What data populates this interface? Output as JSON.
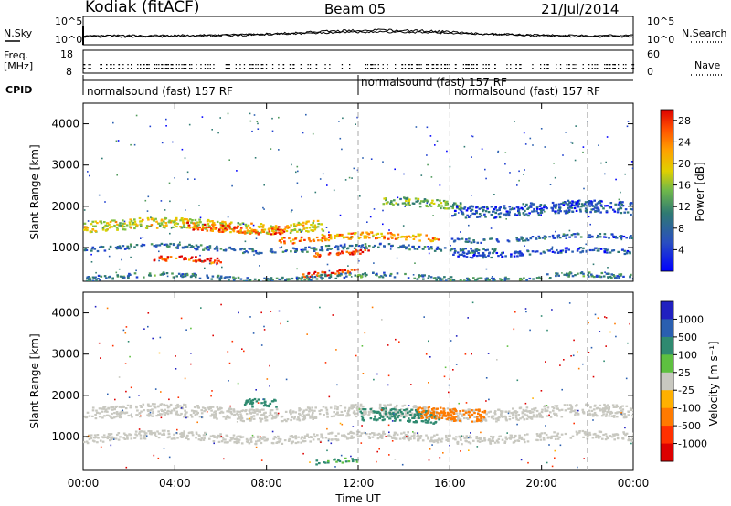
{
  "header": {
    "station": "Kodiak (fitACF)",
    "beam": "Beam 05",
    "date": "21/Jul/2014"
  },
  "top_panels": {
    "nsky_label": "N.Sky",
    "nsky_ticks": [
      "10^5",
      "10^0"
    ],
    "nsearch_label": "N.Search",
    "nsearch_ticks": [
      "10^5",
      "10^0"
    ],
    "freq_label": "Freq.",
    "freq_unit": "[MHz]",
    "freq_ticks": [
      "18",
      "8"
    ],
    "nave_label": "Nave",
    "nave_ticks": [
      "60",
      "0"
    ],
    "cpid_label": "CPID",
    "cpid_entries": [
      {
        "start_hour": 0,
        "text": "normalsound (fast) 157 RF"
      },
      {
        "start_hour": 12,
        "text": "normalsound (fast) 157 RF"
      },
      {
        "start_hour": 16,
        "text": "normalsound (fast) 157 RF"
      }
    ],
    "cpid_overlap_text": "nor(fa st)",
    "cpid_overlap_text2": "-157 RF"
  },
  "chart_data": [
    {
      "type": "heatmap",
      "title": "Power",
      "ylabel": "Slant Range [km]",
      "xlim": [
        0,
        24
      ],
      "ylim": [
        180,
        4500
      ],
      "yticks": [
        1000,
        2000,
        3000,
        4000
      ],
      "colorbar": {
        "label": "Power [dB]",
        "ticks": [
          "28",
          "24",
          "20",
          "16",
          "12",
          "8",
          "4"
        ],
        "range": [
          0,
          30
        ],
        "colors": [
          "#0000ff",
          "#1e3fd0",
          "#2a5fb0",
          "#2f7a72",
          "#4f9a5a",
          "#7fc040",
          "#d8d000",
          "#ffb000",
          "#ff7a00",
          "#ff3000",
          "#dd0000"
        ]
      },
      "bands": [
        {
          "range_km": 1550,
          "width_km": 260,
          "x_start": 0.0,
          "x_end": 10.5,
          "value": 18
        },
        {
          "range_km": 1500,
          "width_km": 180,
          "x_start": 4.5,
          "x_end": 9.0,
          "value": 25
        },
        {
          "range_km": 1250,
          "width_km": 160,
          "x_start": 8.5,
          "x_end": 15.5,
          "value": 22
        },
        {
          "range_km": 1000,
          "width_km": 120,
          "x_start": 0.0,
          "x_end": 18.0,
          "value": 7
        },
        {
          "range_km": 850,
          "width_km": 120,
          "x_start": 10.0,
          "x_end": 12.5,
          "value": 27
        },
        {
          "range_km": 700,
          "width_km": 140,
          "x_start": 3.0,
          "x_end": 6.0,
          "value": 26
        },
        {
          "range_km": 380,
          "width_km": 120,
          "x_start": 9.5,
          "x_end": 12.0,
          "value": 28
        },
        {
          "range_km": 2100,
          "width_km": 200,
          "x_start": 13.0,
          "x_end": 16.5,
          "value": 13
        },
        {
          "range_km": 1950,
          "width_km": 300,
          "x_start": 16.0,
          "x_end": 24.0,
          "value": 5
        },
        {
          "range_km": 1250,
          "width_km": 100,
          "x_start": 16.0,
          "x_end": 24.0,
          "value": 6
        },
        {
          "range_km": 900,
          "width_km": 120,
          "x_start": 16.0,
          "x_end": 24.0,
          "value": 5
        },
        {
          "range_km": 300,
          "width_km": 120,
          "x_start": 0.0,
          "x_end": 24.0,
          "value": 9
        }
      ]
    },
    {
      "type": "heatmap",
      "title": "Velocity",
      "ylabel": "Slant Range [km]",
      "xlabel": "Time UT",
      "xlim": [
        0,
        24
      ],
      "ylim": [
        180,
        4500
      ],
      "xticks": [
        "00:00",
        "04:00",
        "08:00",
        "12:00",
        "16:00",
        "20:00",
        "00:00"
      ],
      "yticks": [
        1000,
        2000,
        3000,
        4000
      ],
      "colorbar": {
        "label": "Velocity [m s⁻¹]",
        "ticks": [
          "1000",
          "500",
          "100",
          "25",
          "-25",
          "-100",
          "-500",
          "-1000"
        ],
        "colors": [
          "#2020c0",
          "#2a5fb0",
          "#2f8a70",
          "#5ec040",
          "#c8c8c0",
          "#ffb000",
          "#ff7a00",
          "#ff3000",
          "#dd0000"
        ]
      },
      "bands": [
        {
          "range_km": 1600,
          "width_km": 300,
          "x_start": 0.0,
          "x_end": 24.0,
          "value": 0
        },
        {
          "range_km": 1000,
          "width_km": 200,
          "x_start": 0.0,
          "x_end": 24.0,
          "value": 0
        },
        {
          "range_km": 1500,
          "width_km": 300,
          "x_start": 12.0,
          "x_end": 15.5,
          "value": 120
        },
        {
          "range_km": 1600,
          "width_km": 300,
          "x_start": 14.5,
          "x_end": 17.5,
          "value": -150
        },
        {
          "range_km": 1900,
          "width_km": 200,
          "x_start": 7.0,
          "x_end": 8.5,
          "value": 150
        },
        {
          "range_km": 400,
          "width_km": 100,
          "x_start": 10.0,
          "x_end": 12.0,
          "value": 60
        }
      ]
    }
  ],
  "x_axis": {
    "label": "Time UT",
    "ticks": [
      "00:00",
      "04:00",
      "08:00",
      "12:00",
      "16:00",
      "20:00",
      "00:00"
    ]
  }
}
